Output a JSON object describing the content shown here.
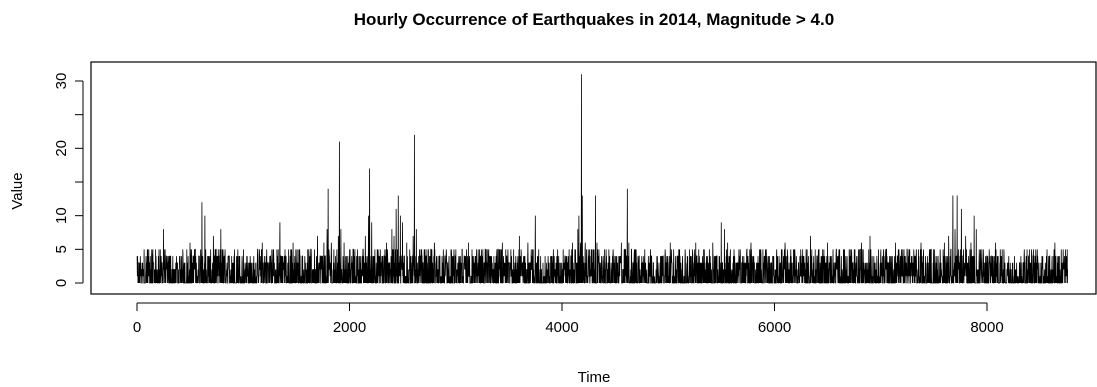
{
  "chart_data": {
    "type": "line",
    "title": "Hourly Occurrence of Earthquakes in 2014, Magnitude > 4.0",
    "xlabel": "Time",
    "ylabel": "Value",
    "xlim": [
      1,
      8760
    ],
    "ylim": [
      0,
      31
    ],
    "x_ticks": [
      0,
      2000,
      4000,
      6000,
      8000
    ],
    "x_tick_labels": [
      "0",
      "2000",
      "4000",
      "6000",
      "8000"
    ],
    "y_ticks": [
      0,
      5,
      10,
      20,
      30
    ],
    "y_tick_labels": [
      "0",
      "5",
      "10",
      "20",
      "30"
    ],
    "y_minor_ticks": [
      15,
      25
    ],
    "grid": false,
    "line_color": "#000000",
    "series": [
      {
        "x": [
          1,
          60,
          150,
          230,
          250,
          330,
          420,
          500,
          560,
          600,
          612,
          640,
          680,
          720,
          790,
          870,
          950,
          1030,
          1100,
          1180,
          1260,
          1330,
          1345,
          1400,
          1470,
          1560,
          1640,
          1700,
          1760,
          1790,
          1800,
          1830,
          1870,
          1895,
          1905,
          1920,
          1950,
          1980,
          2040,
          2100,
          2150,
          2180,
          2190,
          2210,
          2240,
          2300,
          2350,
          2400,
          2420,
          2440,
          2460,
          2480,
          2500,
          2540,
          2580,
          2600,
          2612,
          2630,
          2660,
          2720,
          2800,
          2880,
          2960,
          3040,
          3120,
          3200,
          3280,
          3360,
          3440,
          3520,
          3600,
          3680,
          3750,
          3800,
          3880,
          3960,
          4040,
          4100,
          4150,
          4160,
          4175,
          4183,
          4192,
          4200,
          4220,
          4260,
          4300,
          4315,
          4330,
          4400,
          4480,
          4560,
          4600,
          4616,
          4630,
          4700,
          4780,
          4860,
          4940,
          5020,
          5100,
          5180,
          5260,
          5340,
          5420,
          5500,
          5530,
          5560,
          5620,
          5700,
          5780,
          5860,
          5940,
          6020,
          6100,
          6180,
          6260,
          6340,
          6420,
          6500,
          6580,
          6660,
          6740,
          6820,
          6900,
          6980,
          7060,
          7140,
          7220,
          7300,
          7380,
          7460,
          7540,
          7600,
          7640,
          7660,
          7680,
          7700,
          7720,
          7760,
          7800,
          7850,
          7880,
          7900,
          7940,
          8000,
          8080,
          8160,
          8240,
          8320,
          8400,
          8480,
          8560,
          8640,
          8700,
          8760
        ],
        "values": [
          4,
          2,
          5,
          3,
          8,
          2,
          4,
          6,
          3,
          5,
          12,
          10,
          4,
          7,
          8,
          4,
          5,
          3,
          4,
          6,
          3,
          5,
          9,
          4,
          6,
          4,
          5,
          7,
          6,
          8,
          14,
          6,
          4,
          7,
          21,
          8,
          6,
          4,
          5,
          3,
          7,
          10,
          17,
          9,
          5,
          3,
          6,
          8,
          7,
          11,
          13,
          10,
          9,
          6,
          4,
          7,
          22,
          8,
          5,
          4,
          6,
          3,
          5,
          4,
          6,
          3,
          5,
          4,
          6,
          5,
          7,
          6,
          10,
          4,
          3,
          5,
          4,
          6,
          8,
          10,
          6,
          31,
          13,
          4,
          6,
          5,
          4,
          13,
          6,
          5,
          4,
          6,
          5,
          14,
          6,
          4,
          5,
          3,
          4,
          6,
          5,
          4,
          6,
          5,
          6,
          9,
          8,
          6,
          5,
          4,
          6,
          5,
          3,
          4,
          6,
          5,
          4,
          7,
          5,
          6,
          4,
          5,
          3,
          6,
          7,
          5,
          4,
          6,
          5,
          3,
          6,
          5,
          4,
          6,
          7,
          5,
          13,
          8,
          13,
          11,
          7,
          6,
          10,
          8,
          5,
          4,
          6,
          5,
          3,
          4,
          5,
          3,
          4,
          6,
          5,
          2
        ]
      }
    ]
  }
}
